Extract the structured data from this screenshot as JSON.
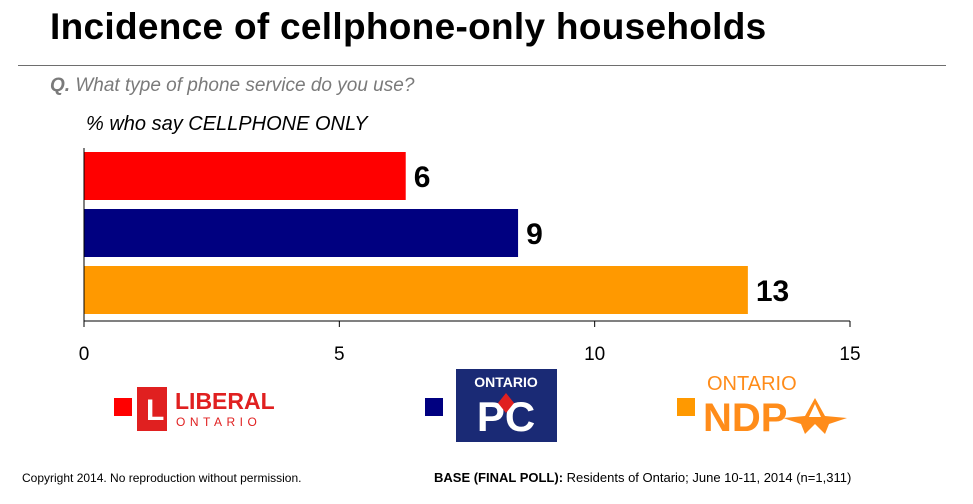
{
  "title": "Incidence of cellphone-only households",
  "question_prefix": "Q.",
  "question_text": "What type of phone service do you use?",
  "subtitle": "% who say CELLPHONE ONLY",
  "chart_data": {
    "type": "bar",
    "orientation": "horizontal",
    "categories": [
      "Liberal",
      "PC",
      "NDP"
    ],
    "values": [
      6,
      9,
      13
    ],
    "value_labels": [
      "6",
      "9",
      "13"
    ],
    "exact_values": [
      6.3,
      8.5,
      13.0
    ],
    "colors": [
      "#ff0000",
      "#000080",
      "#ff9900"
    ],
    "xlim": [
      0,
      15
    ],
    "xticks": [
      0,
      5,
      10,
      15
    ],
    "xtick_labels": [
      "0",
      "5",
      "10",
      "15"
    ],
    "title": "% who say CELLPHONE ONLY",
    "grid": false
  },
  "legend": {
    "liberal": {
      "color": "#ff0000",
      "logo_main": "LIBERAL",
      "logo_sub": "ONTARIO",
      "logo_mark": "L",
      "logo_color": "#e02020"
    },
    "pc": {
      "color": "#000080",
      "logo_main": "PC",
      "logo_top": "ONTARIO",
      "logo_bg": "#1a2a75"
    },
    "ndp": {
      "color": "#ff9900",
      "logo_main": "NDP",
      "logo_top": "ONTARIO",
      "logo_color": "#ff8c1a"
    }
  },
  "footer": {
    "copyright": "Copyright 2014. No reproduction without permission.",
    "base_label": "BASE (FINAL POLL):",
    "base_text": "Residents of Ontario; June 10-11, 2014 (n=1,311)"
  }
}
